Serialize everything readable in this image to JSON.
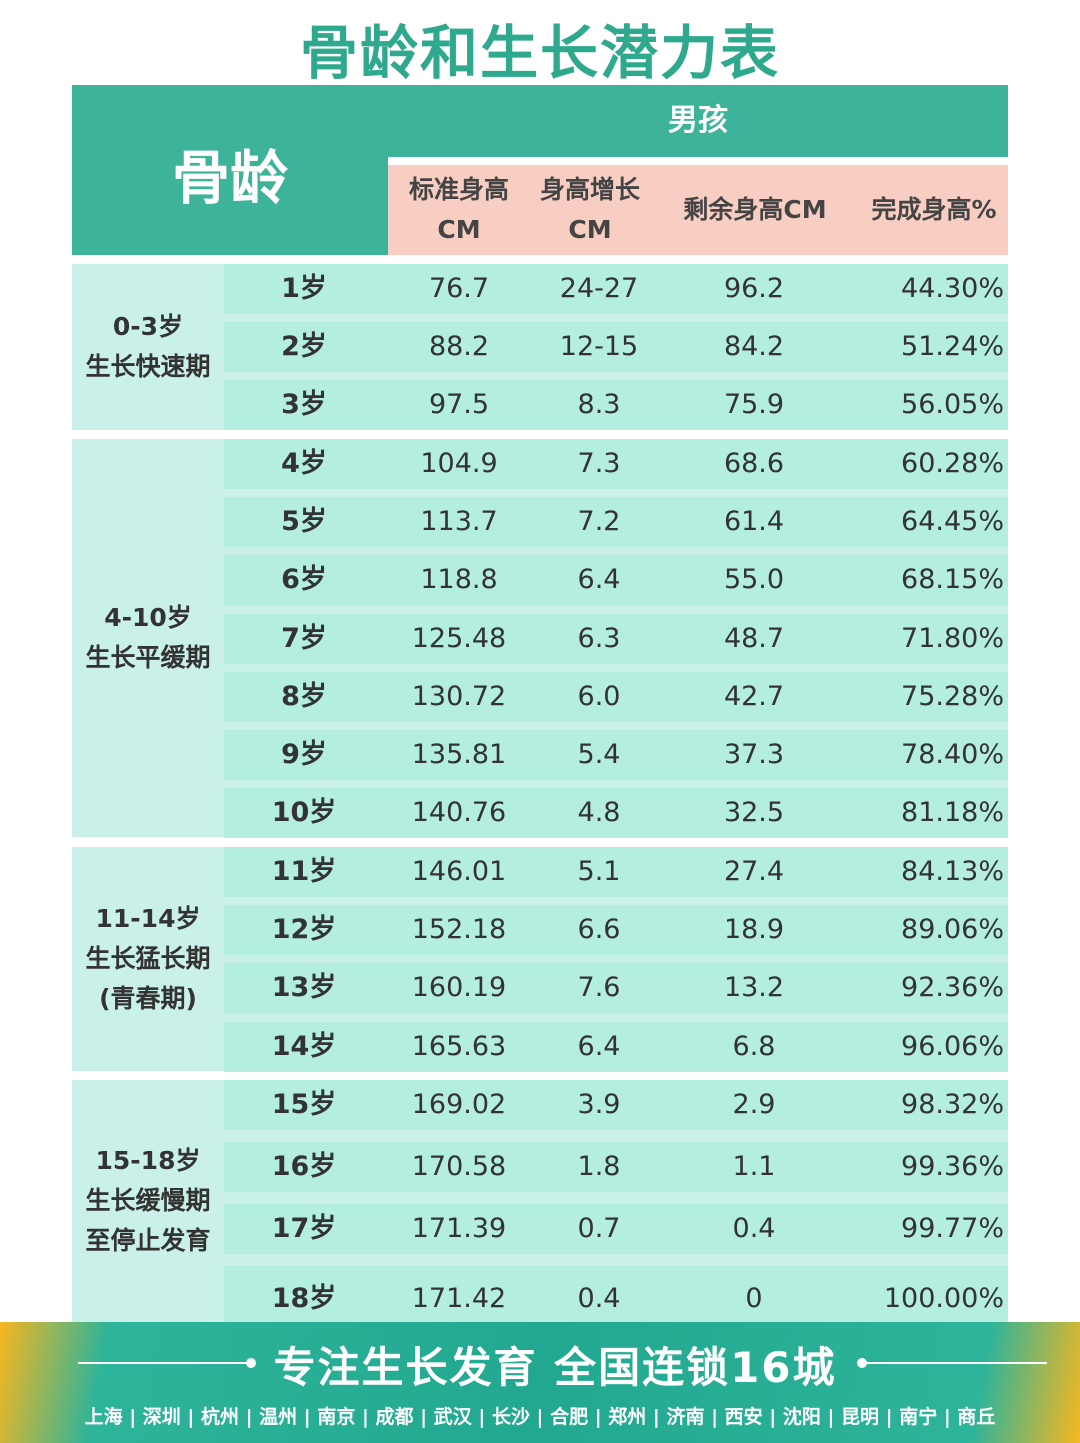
{
  "title": "骨龄和生长潜力表",
  "header": {
    "left": "骨龄",
    "group": "男孩",
    "columns": [
      {
        "line1": "标准身高",
        "line2": "CM"
      },
      {
        "line1": "身高增长",
        "line2": "CM"
      },
      {
        "line1": "剩余身高CM",
        "line2": ""
      },
      {
        "line1": "完成身高%",
        "line2": ""
      }
    ]
  },
  "groups": [
    {
      "label": [
        "0-3岁",
        "生长快速期"
      ],
      "rows": [
        {
          "age": "1岁",
          "std": "76.7",
          "inc": "24-27",
          "rem": "96.2",
          "pct": "44.30%"
        },
        {
          "age": "2岁",
          "std": "88.2",
          "inc": "12-15",
          "rem": "84.2",
          "pct": "51.24%"
        },
        {
          "age": "3岁",
          "std": "97.5",
          "inc": "8.3",
          "rem": "75.9",
          "pct": "56.05%"
        }
      ]
    },
    {
      "label": [
        "4-10岁",
        "生长平缓期"
      ],
      "rows": [
        {
          "age": "4岁",
          "std": "104.9",
          "inc": "7.3",
          "rem": "68.6",
          "pct": "60.28%"
        },
        {
          "age": "5岁",
          "std": "113.7",
          "inc": "7.2",
          "rem": "61.4",
          "pct": "64.45%"
        },
        {
          "age": "6岁",
          "std": "118.8",
          "inc": "6.4",
          "rem": "55.0",
          "pct": "68.15%"
        },
        {
          "age": "7岁",
          "std": "125.48",
          "inc": "6.3",
          "rem": "48.7",
          "pct": "71.80%"
        },
        {
          "age": "8岁",
          "std": "130.72",
          "inc": "6.0",
          "rem": "42.7",
          "pct": "75.28%"
        },
        {
          "age": "9岁",
          "std": "135.81",
          "inc": "5.4",
          "rem": "37.3",
          "pct": "78.40%"
        },
        {
          "age": "10岁",
          "std": "140.76",
          "inc": "4.8",
          "rem": "32.5",
          "pct": "81.18%"
        }
      ]
    },
    {
      "label": [
        "11-14岁",
        "生长猛长期",
        "(青春期)"
      ],
      "rows": [
        {
          "age": "11岁",
          "std": "146.01",
          "inc": "5.1",
          "rem": "27.4",
          "pct": "84.13%"
        },
        {
          "age": "12岁",
          "std": "152.18",
          "inc": "6.6",
          "rem": "18.9",
          "pct": "89.06%"
        },
        {
          "age": "13岁",
          "std": "160.19",
          "inc": "7.6",
          "rem": "13.2",
          "pct": "92.36%"
        },
        {
          "age": "14岁",
          "std": "165.63",
          "inc": "6.4",
          "rem": "6.8",
          "pct": "96.06%"
        }
      ]
    },
    {
      "label": [
        "15-18岁",
        "生长缓慢期",
        "至停止发育"
      ],
      "rows": [
        {
          "age": "15岁",
          "std": "169.02",
          "inc": "3.9",
          "rem": "2.9",
          "pct": "98.32%"
        },
        {
          "age": "16岁",
          "std": "170.58",
          "inc": "1.8",
          "rem": "1.1",
          "pct": "99.36%"
        },
        {
          "age": "17岁",
          "std": "171.39",
          "inc": "0.7",
          "rem": "0.4",
          "pct": "99.77%"
        },
        {
          "age": "18岁",
          "std": "171.42",
          "inc": "0.4",
          "rem": "0",
          "pct": "100.00%"
        }
      ]
    }
  ],
  "footer": {
    "slogan": "专注生长发育   全国连锁16城",
    "cities": [
      "上海",
      "深圳",
      "杭州",
      "温州",
      "南京",
      "成都",
      "武汉",
      "长沙",
      "合肥",
      "郑州",
      "济南",
      "西安",
      "沈阳",
      "昆明",
      "南宁",
      "商丘"
    ]
  },
  "colors": {
    "title": "#2fa98e",
    "header_green": "#3db39a",
    "header_pink": "#f8cdc2",
    "row_mint": "#b3eee1",
    "group_bg": "#c9f1e9",
    "footer_accent": "#f6b71e"
  }
}
